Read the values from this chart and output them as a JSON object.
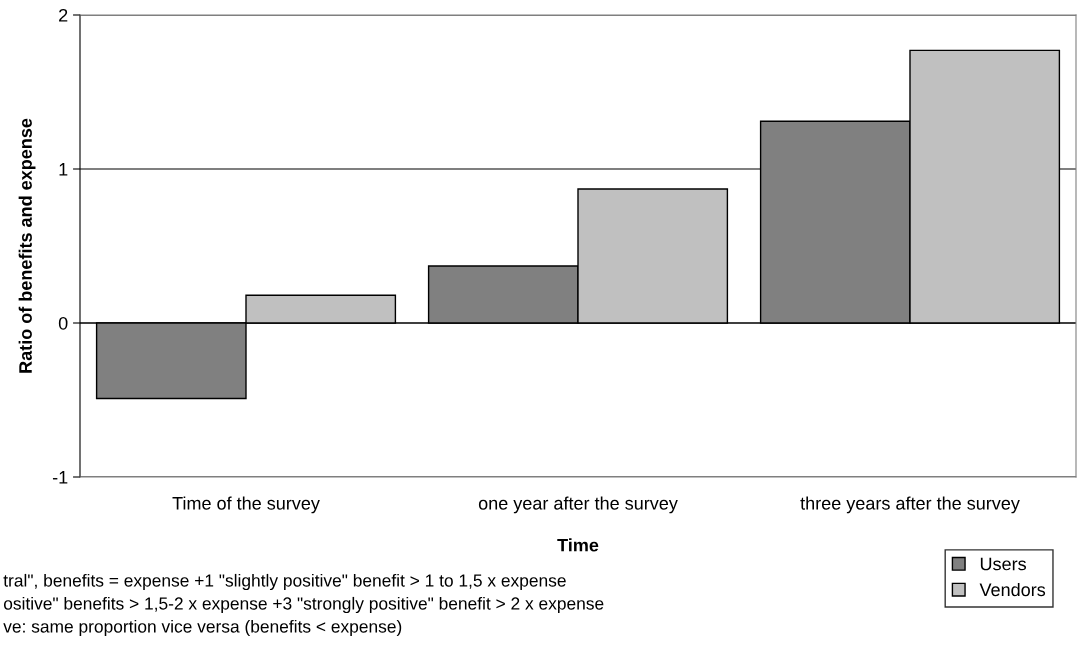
{
  "chart_data": {
    "type": "bar",
    "xlabel": "Time",
    "ylabel": "Ratio of benefits and expense",
    "categories": [
      "Time of the survey",
      "one year after the survey",
      "three years after the survey"
    ],
    "series": [
      {
        "name": "Users",
        "color": "#808080",
        "values": [
          -0.49,
          0.37,
          1.31
        ]
      },
      {
        "name": "Vendors",
        "color": "#c0c0c0",
        "values": [
          0.18,
          0.87,
          1.77
        ]
      }
    ],
    "ylim": [
      -1,
      2
    ],
    "yticks": [
      -1,
      0,
      1,
      2
    ],
    "grid": "y",
    "legend": "bottom right",
    "annotations": [
      "tral\", benefits = expense +1 \"slightly positive\" benefit > 1 to 1,5 x expense",
      "ositive\" benefits > 1,5-2 x expense +3 \"strongly positive\" benefit > 2 x expense",
      "ve: same proportion vice versa (benefits < expense)"
    ]
  }
}
